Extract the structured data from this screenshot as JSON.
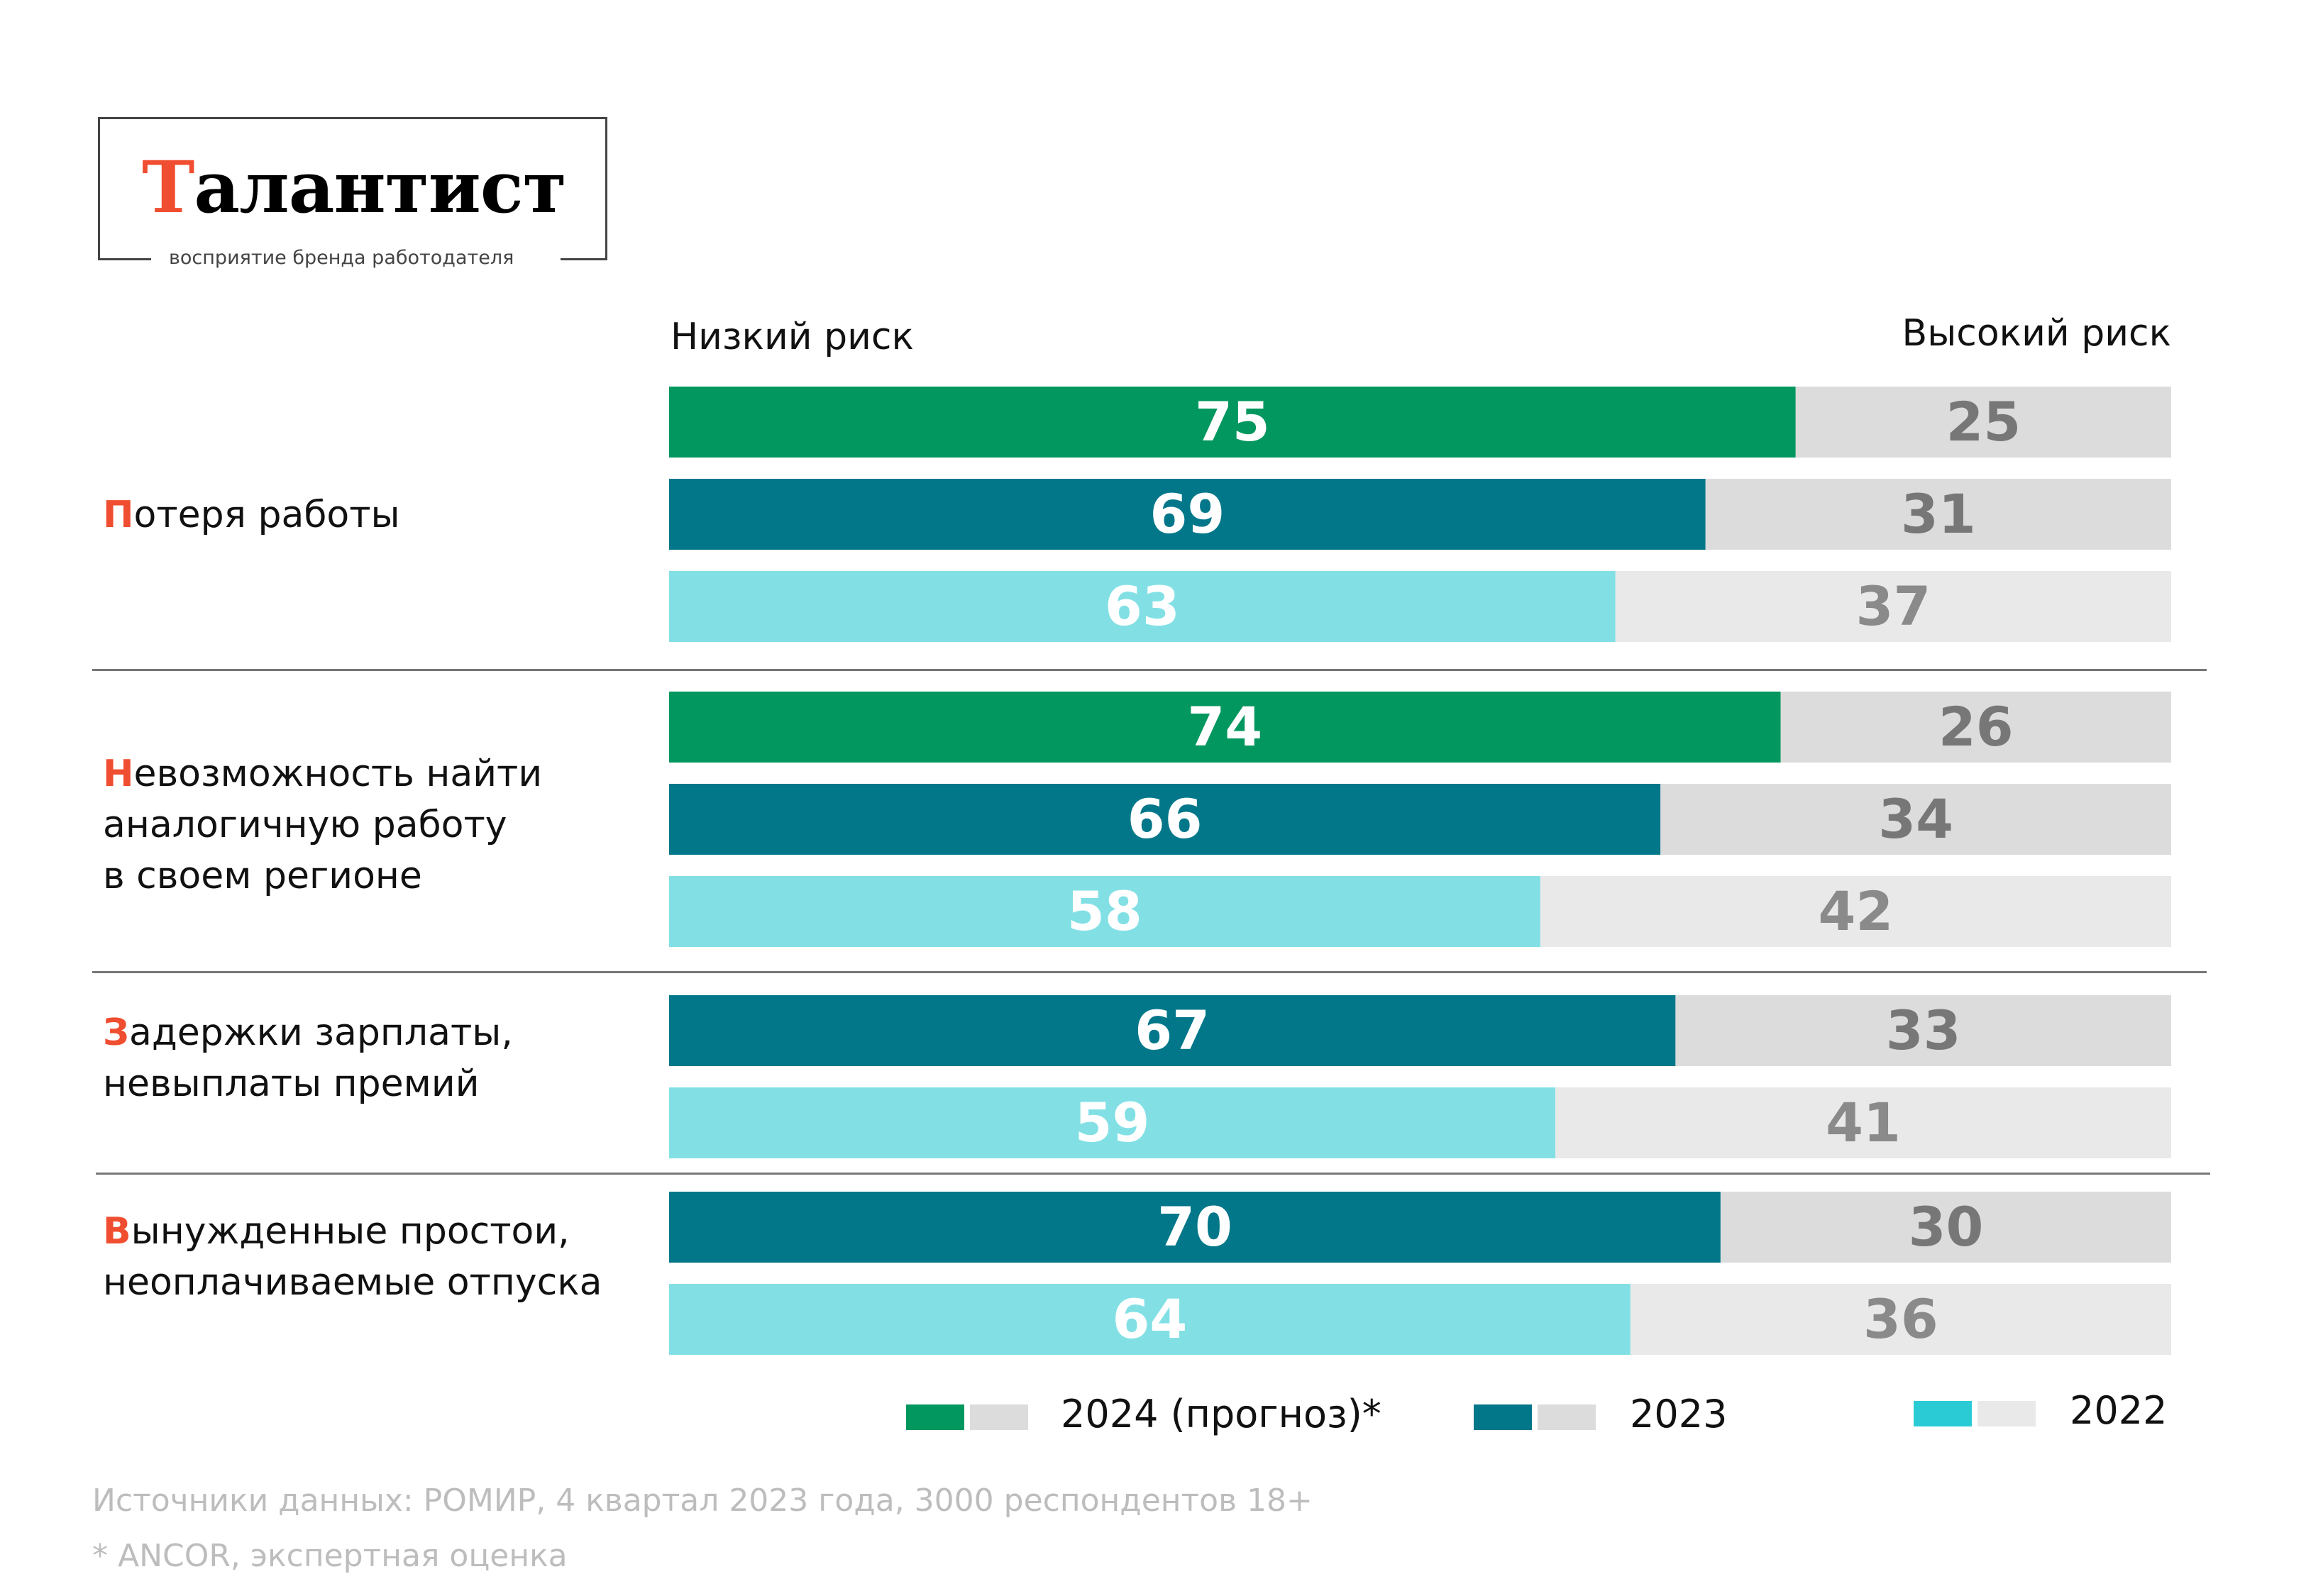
{
  "brand": {
    "title_first": "Т",
    "title_rest": "алантист",
    "subtitle": "восприятие бренда работодателя",
    "accent": "#f04e30"
  },
  "chart_data": {
    "type": "bar",
    "orientation": "horizontal-stacked-100",
    "left_label": "Низкий риск",
    "right_label": "Высокий риск",
    "xlim": [
      0,
      100
    ],
    "groups": [
      {
        "first": "П",
        "label_lines": [
          "отеря работы"
        ],
        "bars": [
          {
            "series": "2024 (прогноз)*",
            "low": 75,
            "high": 25
          },
          {
            "series": "2023",
            "low": 69,
            "high": 31
          },
          {
            "series": "2022",
            "low": 63,
            "high": 37
          }
        ]
      },
      {
        "first": "Н",
        "label_lines": [
          "евозможность найти",
          "аналогичную работу",
          "в своем регионе"
        ],
        "bars": [
          {
            "series": "2024 (прогноз)*",
            "low": 74,
            "high": 26
          },
          {
            "series": "2023",
            "low": 66,
            "high": 34
          },
          {
            "series": "2022",
            "low": 58,
            "high": 42
          }
        ]
      },
      {
        "first": "З",
        "label_lines": [
          "адержки зарплаты,",
          "невыплаты премий"
        ],
        "bars": [
          {
            "series": "2023",
            "low": 67,
            "high": 33
          },
          {
            "series": "2022",
            "low": 59,
            "high": 41
          }
        ]
      },
      {
        "first": "В",
        "label_lines": [
          "ынужденные простои,",
          "неоплачиваемые отпуска"
        ],
        "bars": [
          {
            "series": "2023",
            "low": 70,
            "high": 30
          },
          {
            "series": "2022",
            "low": 64,
            "high": 36
          }
        ]
      }
    ],
    "legend": [
      {
        "label": "2024 (прогноз)*",
        "color": "#02975e",
        "rest": "#dcdcdc"
      },
      {
        "label": "2023",
        "color": "#02778a",
        "rest": "#dcdcdc"
      },
      {
        "label": "2022",
        "color": "#2acbd5",
        "rest": "#e9e9e9"
      }
    ],
    "colors": {
      "2024 (прогноз)*": {
        "low": "#02975e",
        "high": "#dcdcdc",
        "high_text": "#777777"
      },
      "2023": {
        "low": "#02778a",
        "high": "#dcdcdc",
        "high_text": "#777777"
      },
      "2022": {
        "low": "#82e0e5",
        "high": "#e9e9e9",
        "high_text": "#8a8a8a"
      }
    }
  },
  "footer": {
    "source": "Источники данных: РОМИР, 4 квартал 2023 года, 3000 респондентов 18+",
    "note": "* ANCOR, экспертная оценка"
  }
}
